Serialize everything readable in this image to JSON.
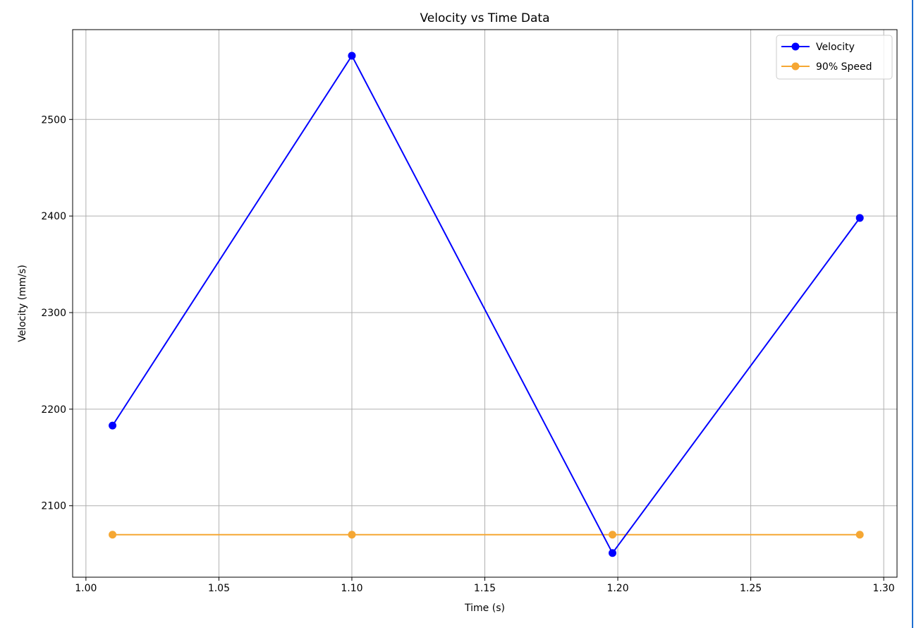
{
  "chart_data": {
    "type": "line",
    "title": "Velocity vs Time Data",
    "xlabel": "Time (s)",
    "ylabel": "Velocity (mm/s)",
    "xlim": [
      0.995,
      1.305
    ],
    "ylim": [
      2026,
      2593
    ],
    "xticks": [
      1.0,
      1.05,
      1.1,
      1.15,
      1.2,
      1.25,
      1.3
    ],
    "xtick_labels": [
      "1.00",
      "1.05",
      "1.10",
      "1.15",
      "1.20",
      "1.25",
      "1.30"
    ],
    "yticks": [
      2100,
      2200,
      2300,
      2400,
      2500
    ],
    "ytick_labels": [
      "2100",
      "2200",
      "2300",
      "2400",
      "2500"
    ],
    "grid": true,
    "legend_position": "top-right",
    "series": [
      {
        "name": "Velocity",
        "color": "#0000ff",
        "marker": "circle",
        "x": [
          1.01,
          1.1,
          1.198,
          1.291
        ],
        "y": [
          2183,
          2566,
          2051,
          2398
        ]
      },
      {
        "name": "90% Speed",
        "color": "#f5a733",
        "marker": "circle",
        "x": [
          1.01,
          1.1,
          1.198,
          1.291
        ],
        "y": [
          2070,
          2070,
          2070,
          2070
        ]
      }
    ]
  }
}
